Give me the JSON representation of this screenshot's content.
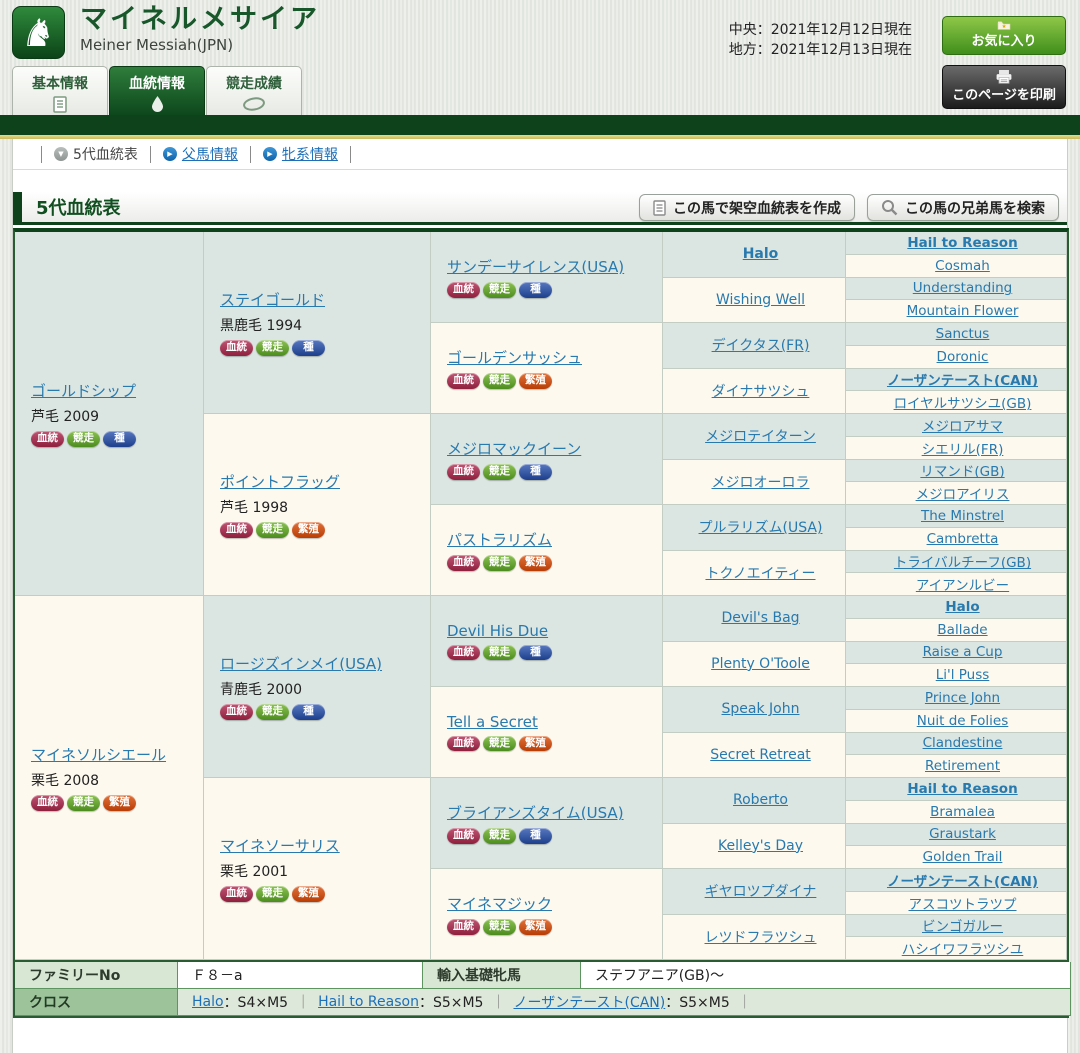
{
  "colors": {
    "accent_green": "#0d421a",
    "link_blue": "#1d6fb8",
    "gold_line": "#d6c96f",
    "badge_blood": "#9c2a47",
    "badge_race": "#55941f",
    "badge_stud": "#21459c",
    "badge_brood": "#c24406",
    "sire_cell_bg": "#dbe5e1",
    "dam_cell_bg": "#fdf9ee"
  },
  "header": {
    "title": "マイネルメサイア",
    "subtitle": "Meiner Messiah(JPN)",
    "date_central": "中央：2021年12月12日現在",
    "date_local": "地方：2021年12月13日現在",
    "favorite_button": "お気に入り",
    "print_button": "このページを印刷"
  },
  "tabs": [
    {
      "label": "基本情報",
      "active": false
    },
    {
      "label": "血統情報",
      "active": true
    },
    {
      "label": "競走成績",
      "active": false
    }
  ],
  "subnav": {
    "current": "5代血統表",
    "links": [
      "父馬情報",
      "牝系情報"
    ]
  },
  "section": {
    "title": "5代血統表",
    "make_table_button": "この馬で架空血統表を作成",
    "search_siblings_button": "この馬の兄弟馬を検索"
  },
  "badge_labels": {
    "blood": "血統",
    "race": "競走",
    "stud": "種",
    "brood": "繁殖"
  },
  "pedigree": {
    "gen1": [
      {
        "name": "ゴールドシップ",
        "info": "芦毛 2009",
        "badges": [
          "blood",
          "race",
          "stud"
        ],
        "sex": "m"
      },
      {
        "name": "マイネソルシエール",
        "info": "栗毛 2008",
        "badges": [
          "blood",
          "race",
          "brood"
        ],
        "sex": "f"
      }
    ],
    "gen2": [
      {
        "name": "ステイゴールド",
        "info": "黒鹿毛 1994",
        "badges": [
          "blood",
          "race",
          "stud"
        ],
        "sex": "m"
      },
      {
        "name": "ポイントフラッグ",
        "info": "芦毛 1998",
        "badges": [
          "blood",
          "race",
          "brood"
        ],
        "sex": "f"
      },
      {
        "name": "ロージズインメイ(USA)",
        "info": "青鹿毛 2000",
        "badges": [
          "blood",
          "race",
          "stud"
        ],
        "sex": "m"
      },
      {
        "name": "マイネソーサリス",
        "info": "栗毛 2001",
        "badges": [
          "blood",
          "race",
          "brood"
        ],
        "sex": "f"
      }
    ],
    "gen3": [
      {
        "name": "サンデーサイレンス(USA)",
        "badges": [
          "blood",
          "race",
          "stud"
        ],
        "sex": "m"
      },
      {
        "name": "ゴールデンサッシュ",
        "badges": [
          "blood",
          "race",
          "brood"
        ],
        "sex": "f"
      },
      {
        "name": "メジロマックイーン",
        "badges": [
          "blood",
          "race",
          "stud"
        ],
        "sex": "m"
      },
      {
        "name": "パストラリズム",
        "badges": [
          "blood",
          "race",
          "brood"
        ],
        "sex": "f"
      },
      {
        "name": "Devil His Due",
        "badges": [
          "blood",
          "race",
          "stud"
        ],
        "sex": "m"
      },
      {
        "name": "Tell a Secret",
        "badges": [
          "blood",
          "race",
          "brood"
        ],
        "sex": "f"
      },
      {
        "name": "ブライアンズタイム(USA)",
        "badges": [
          "blood",
          "race",
          "stud"
        ],
        "sex": "m"
      },
      {
        "name": "マイネマジック",
        "badges": [
          "blood",
          "race",
          "brood"
        ],
        "sex": "f"
      }
    ],
    "gen4": [
      {
        "name": "Halo",
        "sex": "m",
        "bold": true
      },
      {
        "name": "Wishing Well",
        "sex": "f"
      },
      {
        "name": "デイクタス(FR)",
        "sex": "m"
      },
      {
        "name": "ダイナサツシュ",
        "sex": "f"
      },
      {
        "name": "メジロテイターン",
        "sex": "m"
      },
      {
        "name": "メジロオーロラ",
        "sex": "f"
      },
      {
        "name": "プルラリズム(USA)",
        "sex": "m"
      },
      {
        "name": "トクノエイティー",
        "sex": "f"
      },
      {
        "name": "Devil's Bag",
        "sex": "m"
      },
      {
        "name": "Plenty O'Toole",
        "sex": "f"
      },
      {
        "name": "Speak John",
        "sex": "m"
      },
      {
        "name": "Secret Retreat",
        "sex": "f"
      },
      {
        "name": "Roberto",
        "sex": "m"
      },
      {
        "name": "Kelley's Day",
        "sex": "f"
      },
      {
        "name": "ギヤロツプダイナ",
        "sex": "m"
      },
      {
        "name": "レツドフラツシュ",
        "sex": "f"
      }
    ],
    "gen5": [
      {
        "name": "Hail to Reason",
        "sex": "m",
        "bold": true
      },
      {
        "name": "Cosmah",
        "sex": "f"
      },
      {
        "name": "Understanding",
        "sex": "m"
      },
      {
        "name": "Mountain Flower",
        "sex": "f"
      },
      {
        "name": "Sanctus",
        "sex": "m"
      },
      {
        "name": "Doronic",
        "sex": "f"
      },
      {
        "name": "ノーザンテースト(CAN)",
        "sex": "m",
        "bold": true
      },
      {
        "name": "ロイヤルサツシユ(GB)",
        "sex": "f"
      },
      {
        "name": "メジロアサマ",
        "sex": "m"
      },
      {
        "name": "シエリル(FR)",
        "sex": "f"
      },
      {
        "name": "リマンド(GB)",
        "sex": "m"
      },
      {
        "name": "メジロアイリス",
        "sex": "f"
      },
      {
        "name": "The Minstrel",
        "sex": "m"
      },
      {
        "name": "Cambretta",
        "sex": "f"
      },
      {
        "name": "トライバルチーフ(GB)",
        "sex": "m"
      },
      {
        "name": "アイアンルビー",
        "sex": "f"
      },
      {
        "name": "Halo",
        "sex": "m",
        "bold": true
      },
      {
        "name": "Ballade",
        "sex": "f"
      },
      {
        "name": "Raise a Cup",
        "sex": "m"
      },
      {
        "name": "Li'l Puss",
        "sex": "f"
      },
      {
        "name": "Prince John",
        "sex": "m"
      },
      {
        "name": "Nuit de Folies",
        "sex": "f"
      },
      {
        "name": "Clandestine",
        "sex": "m"
      },
      {
        "name": "Retirement",
        "sex": "f"
      },
      {
        "name": "Hail to Reason",
        "sex": "m",
        "bold": true
      },
      {
        "name": "Bramalea",
        "sex": "f"
      },
      {
        "name": "Graustark",
        "sex": "m"
      },
      {
        "name": "Golden Trail",
        "sex": "f"
      },
      {
        "name": "ノーザンテースト(CAN)",
        "sex": "m",
        "bold": true
      },
      {
        "name": "アスコツトラツプ",
        "sex": "f"
      },
      {
        "name": "ビンゴガルー",
        "sex": "m"
      },
      {
        "name": "ハシイワフラツシユ",
        "sex": "f"
      }
    ]
  },
  "footer": {
    "family_no_label": "ファミリーNo",
    "family_no": "Ｆ８－a",
    "imported_mare_label": "輸入基礎牝馬",
    "imported_mare": "ステフアニア(GB)～",
    "cross_label": "クロス",
    "crosses": [
      {
        "name": "Halo",
        "value": "S4×M5"
      },
      {
        "name": "Hail to Reason",
        "value": "S5×M5"
      },
      {
        "name": "ノーザンテースト(CAN)",
        "value": "S5×M5"
      }
    ]
  }
}
